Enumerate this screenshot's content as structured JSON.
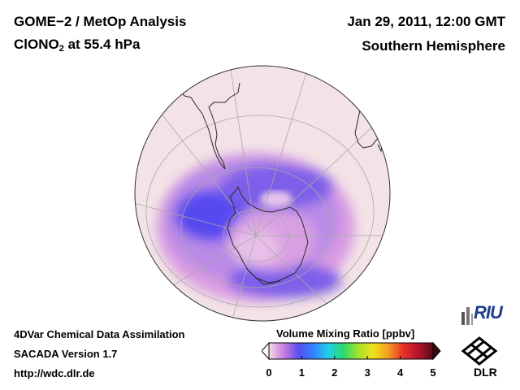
{
  "header": {
    "title_main": "GOME−2 / MetOp Analysis",
    "species_prefix": "ClONO",
    "species_subscript": "2",
    "species_suffix": " at 55.4 hPa",
    "datetime": "Jan 29, 2011, 12:00 GMT",
    "region": "Southern Hemisphere"
  },
  "footer": {
    "line1": "4DVar Chemical Data Assimilation",
    "line2": "SACADA Version 1.7",
    "line3": "http://wdc.dlr.de"
  },
  "colorbar": {
    "title": "Volume Mixing Ratio [ppbv]",
    "ticks": [
      "0",
      "1",
      "2",
      "3",
      "4",
      "5"
    ],
    "min": 0,
    "max": 5,
    "stops": [
      "#f4dde8",
      "#c87be0",
      "#5a4df0",
      "#2f86ff",
      "#22d0e6",
      "#2bd96b",
      "#a8e22c",
      "#f2e21e",
      "#f59a22",
      "#e8312a",
      "#b3132d",
      "#5a0d1a"
    ]
  },
  "logos": {
    "riu": "RIU",
    "dlr": "DLR"
  },
  "map": {
    "projection": "orthographic, south pole",
    "colors": {
      "ocean_bg": "#f3e3e6",
      "moderate": "#d99be2",
      "high": "#7d5ee9",
      "peak": "#5648ef",
      "coast": "#2a2a2a",
      "grid": "#a8a8a8"
    }
  }
}
